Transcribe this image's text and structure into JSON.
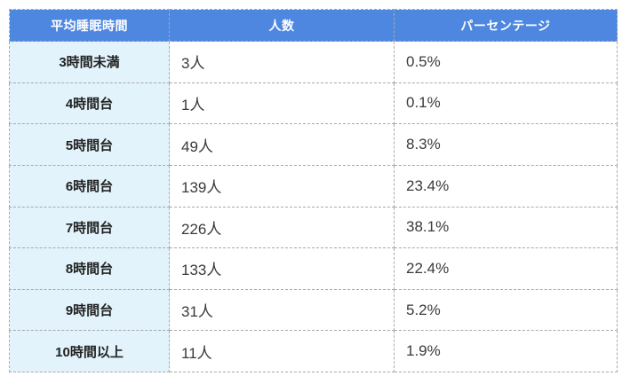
{
  "table": {
    "headers": [
      "平均睡眠時間",
      "人数",
      "パーセンテージ"
    ],
    "rows": [
      {
        "label": "3時間未満",
        "count": "3人",
        "percentage": "0.5%"
      },
      {
        "label": "4時間台",
        "count": "1人",
        "percentage": "0.1%"
      },
      {
        "label": "5時間台",
        "count": "49人",
        "percentage": "8.3%"
      },
      {
        "label": "6時間台",
        "count": "139人",
        "percentage": "23.4%"
      },
      {
        "label": "7時間台",
        "count": "226人",
        "percentage": "38.1%"
      },
      {
        "label": "8時間台",
        "count": "133人",
        "percentage": "22.4%"
      },
      {
        "label": "9時間台",
        "count": "31人",
        "percentage": "5.2%"
      },
      {
        "label": "10時間以上",
        "count": "11人",
        "percentage": "1.9%"
      }
    ],
    "colors": {
      "header_bg": "#4d87e0",
      "header_text": "#ffffff",
      "label_col_bg": "#e2f3fb",
      "border": "#a9a9a9",
      "cell_text": "#3a3a3a"
    }
  },
  "chart_data": {
    "type": "table",
    "title": "",
    "columns": [
      "平均睡眠時間",
      "人数",
      "パーセンテージ"
    ],
    "categories": [
      "3時間未満",
      "4時間台",
      "5時間台",
      "6時間台",
      "7時間台",
      "8時間台",
      "9時間台",
      "10時間以上"
    ],
    "series": [
      {
        "name": "人数",
        "values": [
          3,
          1,
          49,
          139,
          226,
          133,
          31,
          11
        ]
      },
      {
        "name": "パーセンテージ",
        "values": [
          0.5,
          0.1,
          8.3,
          23.4,
          38.1,
          22.4,
          5.2,
          1.9
        ]
      }
    ],
    "rows": [
      [
        "3時間未満",
        "3人",
        "0.5%"
      ],
      [
        "4時間台",
        "1人",
        "0.1%"
      ],
      [
        "5時間台",
        "49人",
        "8.3%"
      ],
      [
        "6時間台",
        "139人",
        "23.4%"
      ],
      [
        "7時間台",
        "226人",
        "38.1%"
      ],
      [
        "8時間台",
        "133人",
        "22.4%"
      ],
      [
        "9時間台",
        "31人",
        "5.2%"
      ],
      [
        "10時間以上",
        "11人",
        "1.9%"
      ]
    ]
  }
}
